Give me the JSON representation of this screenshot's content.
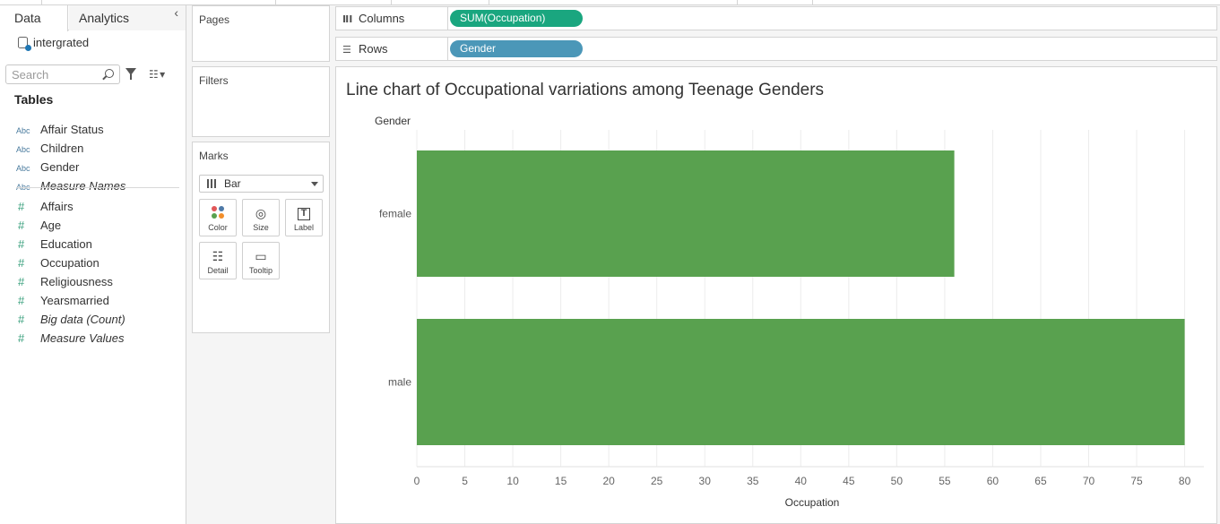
{
  "data_pane": {
    "tabs": {
      "data": "Data",
      "analytics": "Analytics"
    },
    "collapse_icon": "chevron-left-icon",
    "data_source": "intergrated",
    "search": {
      "placeholder": "Search",
      "value": ""
    },
    "tables_heading": "Tables",
    "dimensions": [
      {
        "type": "Abc",
        "name": "Affair Status",
        "italic": false
      },
      {
        "type": "Abc",
        "name": "Children",
        "italic": false
      },
      {
        "type": "Abc",
        "name": "Gender",
        "italic": false
      },
      {
        "type": "Abc",
        "name": "Measure Names",
        "italic": true
      }
    ],
    "measures": [
      {
        "type": "#",
        "name": "Affairs",
        "italic": false
      },
      {
        "type": "#",
        "name": "Age",
        "italic": false
      },
      {
        "type": "#",
        "name": "Education",
        "italic": false
      },
      {
        "type": "#",
        "name": "Occupation",
        "italic": false
      },
      {
        "type": "#",
        "name": "Religiousness",
        "italic": false
      },
      {
        "type": "#",
        "name": "Yearsmarried",
        "italic": false
      },
      {
        "type": "#",
        "name": "Big data (Count)",
        "italic": true
      },
      {
        "type": "#",
        "name": "Measure Values",
        "italic": true
      }
    ]
  },
  "cards": {
    "pages": "Pages",
    "filters": "Filters",
    "marks": {
      "title": "Marks",
      "mark_type": "Bar",
      "buttons": [
        {
          "label": "Color",
          "icon": "color-dots-icon"
        },
        {
          "label": "Size",
          "icon": "size-icon"
        },
        {
          "label": "Label",
          "icon": "label-icon"
        },
        {
          "label": "Detail",
          "icon": "detail-icon"
        },
        {
          "label": "Tooltip",
          "icon": "tooltip-icon"
        }
      ]
    }
  },
  "shelves": {
    "columns": {
      "label": "Columns",
      "pill": "SUM(Occupation)",
      "pill_color": "#1aa67f"
    },
    "rows": {
      "label": "Rows",
      "pill": "Gender",
      "pill_color": "#4b97b8"
    }
  },
  "chart_data": {
    "type": "bar",
    "orientation": "horizontal",
    "title": "Line chart of Occupational varriations among Teenage Genders",
    "row_header": "Gender",
    "categories": [
      "female",
      "male"
    ],
    "values": [
      56,
      80
    ],
    "xlabel": "Occupation",
    "xlim": [
      0,
      82
    ],
    "xticks": [
      0,
      5,
      10,
      15,
      20,
      25,
      30,
      35,
      40,
      45,
      50,
      55,
      60,
      65,
      70,
      75,
      80
    ],
    "bar_color": "#59a14f",
    "grid": true
  }
}
